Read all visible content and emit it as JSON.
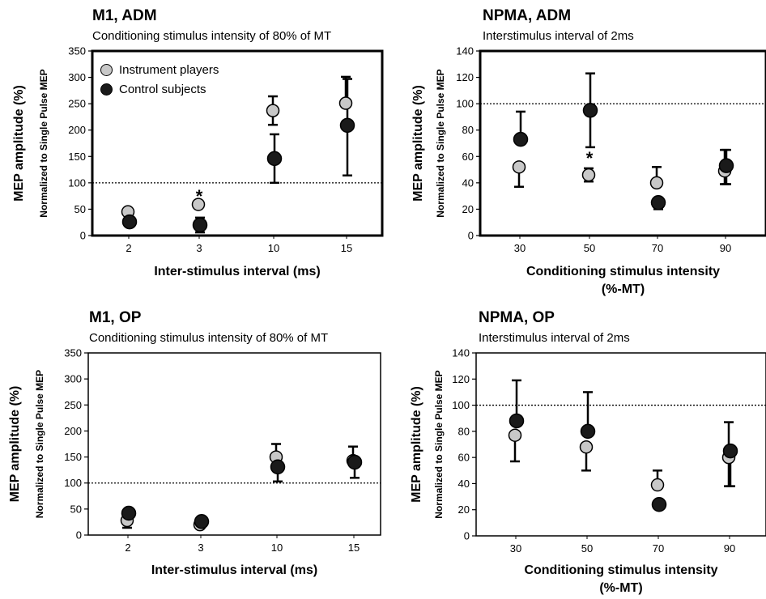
{
  "colors": {
    "instrument": "#c8c8c8",
    "control": "#1a1a1a",
    "axis": "#000000"
  },
  "legend": {
    "instrument": "Instrument players",
    "control": "Control subjects"
  },
  "chart_data": [
    {
      "type": "scatter",
      "panel_title": "M1, ADM",
      "subtitle": "Conditioning stimulus intensity of 80% of MT",
      "xlabel": [
        "Inter-stimulus interval (ms)"
      ],
      "ylabel": "MEP amplitude (%)",
      "ylabel_sub": "Normalized to Single Pulse MEP",
      "categories": [
        "2",
        "3",
        "10",
        "15"
      ],
      "ylim": [
        0,
        350
      ],
      "yticks": [
        "0",
        "50",
        "100",
        "150",
        "200",
        "250",
        "300",
        "350"
      ],
      "reference_line": 100,
      "thick_frame": true,
      "legend_shown": true,
      "annotations": [
        {
          "category_index": 1,
          "y": 75,
          "text": "*"
        }
      ],
      "series": [
        {
          "name": "Instrument players",
          "values": [
            45,
            59,
            237,
            251
          ],
          "err_up": [
            0,
            0,
            27,
            50
          ],
          "err_down": [
            0,
            0,
            27,
            0
          ]
        },
        {
          "name": "Control subjects",
          "values": [
            26,
            20,
            146,
            209
          ],
          "err_up": [
            0,
            14,
            46,
            88
          ],
          "err_down": [
            0,
            14,
            46,
            95
          ]
        }
      ]
    },
    {
      "type": "scatter",
      "panel_title": "NPMA, ADM",
      "subtitle": "Interstimulus interval of 2ms",
      "xlabel": [
        "Conditioning stimulus intensity",
        "(%-MT)"
      ],
      "ylabel": "MEP amplitude (%)",
      "ylabel_sub": "Normalized to Single Pulse MEP",
      "categories": [
        "30",
        "50",
        "70",
        "90"
      ],
      "ylim": [
        0,
        140
      ],
      "yticks": [
        "0",
        "20",
        "40",
        "60",
        "80",
        "100",
        "120",
        "140"
      ],
      "reference_line": 100,
      "thick_frame": true,
      "legend_shown": false,
      "annotations": [
        {
          "category_index": 1,
          "y": 59,
          "text": "*"
        }
      ],
      "series": [
        {
          "name": "Instrument players",
          "values": [
            52,
            46,
            40,
            49
          ],
          "err_up": [
            0,
            5,
            12,
            16
          ],
          "err_down": [
            15,
            5,
            0,
            10
          ]
        },
        {
          "name": "Control subjects",
          "values": [
            73,
            95,
            25,
            53
          ],
          "err_up": [
            21,
            28,
            0,
            12
          ],
          "err_down": [
            0,
            28,
            5,
            14
          ]
        }
      ]
    },
    {
      "type": "scatter",
      "panel_title": "M1, OP",
      "subtitle": "Conditioning stimulus intensity of 80% of MT",
      "xlabel": [
        "Inter-stimulus interval (ms)"
      ],
      "ylabel": "MEP amplitude (%)",
      "ylabel_sub": "Normalized to Single Pulse MEP",
      "categories": [
        "2",
        "3",
        "10",
        "15"
      ],
      "ylim": [
        0,
        350
      ],
      "yticks": [
        "0",
        "50",
        "100",
        "150",
        "200",
        "250",
        "300",
        "350"
      ],
      "reference_line": 100,
      "thick_frame": false,
      "legend_shown": false,
      "annotations": [],
      "series": [
        {
          "name": "Instrument players",
          "values": [
            28,
            20,
            150,
            143
          ],
          "err_up": [
            0,
            0,
            25,
            27
          ],
          "err_down": [
            14,
            0,
            0,
            0
          ]
        },
        {
          "name": "Control subjects",
          "values": [
            42,
            26,
            131,
            140
          ],
          "err_up": [
            0,
            0,
            0,
            0
          ],
          "err_down": [
            0,
            0,
            28,
            30
          ]
        }
      ]
    },
    {
      "type": "scatter",
      "panel_title": "NPMA, OP",
      "subtitle": "Interstimulus interval of 2ms",
      "xlabel": [
        "Conditioning stimulus intensity",
        "(%-MT)"
      ],
      "ylabel": "MEP amplitude (%)",
      "ylabel_sub": "Normalized to Single Pulse MEP",
      "categories": [
        "30",
        "50",
        "70",
        "90"
      ],
      "ylim": [
        0,
        140
      ],
      "yticks": [
        "0",
        "20",
        "40",
        "60",
        "80",
        "100",
        "120",
        "140"
      ],
      "reference_line": 100,
      "thick_frame": false,
      "legend_shown": false,
      "annotations": [],
      "series": [
        {
          "name": "Instrument players",
          "values": [
            77,
            68,
            39,
            60
          ],
          "err_up": [
            0,
            0,
            11,
            27
          ],
          "err_down": [
            20,
            18,
            0,
            22
          ]
        },
        {
          "name": "Control subjects",
          "values": [
            88,
            80,
            24,
            65
          ],
          "err_up": [
            31,
            30,
            0,
            0
          ],
          "err_down": [
            0,
            0,
            0,
            27
          ]
        }
      ]
    }
  ]
}
